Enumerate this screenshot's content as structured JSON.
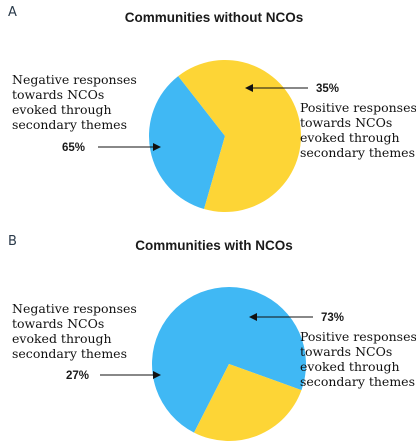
{
  "colors": {
    "negative": "#FDD536",
    "positive": "#40B8F4"
  },
  "chart_data": [
    {
      "type": "pie",
      "panel": "A",
      "title": "Communities without NCOs",
      "slices": [
        {
          "label_lines": [
            "Positive responses",
            "towards NCOs",
            "evoked through",
            "secondary themes"
          ],
          "value": 35,
          "value_label": "35%",
          "color": "#40B8F4"
        },
        {
          "label_lines": [
            "Negative responses",
            "towards NCOs",
            "evoked through",
            "secondary themes"
          ],
          "value": 65,
          "value_label": "65%",
          "color": "#FDD536"
        }
      ]
    },
    {
      "type": "pie",
      "panel": "B",
      "title": "Communities with NCOs",
      "slices": [
        {
          "label_lines": [
            "Positive responses",
            "towards NCOs",
            "evoked through",
            "secondary themes"
          ],
          "value": 73,
          "value_label": "73%",
          "color": "#40B8F4"
        },
        {
          "label_lines": [
            "Negative responses",
            "towards NCOs",
            "evoked through",
            "secondary themes"
          ],
          "value": 27,
          "value_label": "27%",
          "color": "#FDD536"
        }
      ]
    }
  ]
}
